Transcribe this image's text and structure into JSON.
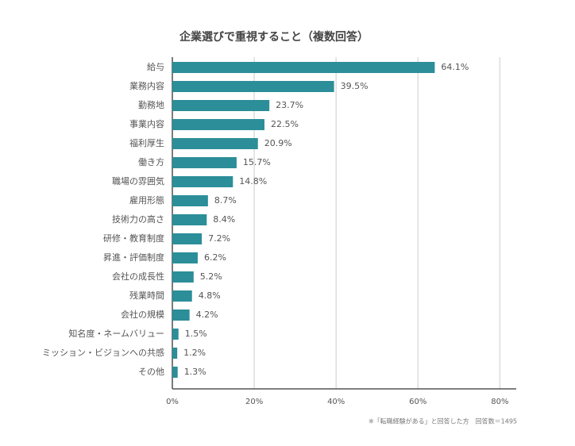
{
  "chart_data": {
    "type": "barh",
    "title": "企業選びで重視すること（複数回答）",
    "note": "※「転職経験がある」と回答した方　回答数＝1495",
    "categories": [
      "給与",
      "業務内容",
      "勤務地",
      "事業内容",
      "福利厚生",
      "働き方",
      "職場の雰囲気",
      "雇用形態",
      "技術力の高さ",
      "研修・教育制度",
      "昇進・評価制度",
      "会社の成長性",
      "残業時間",
      "会社の規模",
      "知名度・ネームバリュー",
      "ミッション・ビジョンへの共感",
      "その他"
    ],
    "values": [
      64.1,
      39.5,
      23.7,
      22.5,
      20.9,
      15.7,
      14.8,
      8.7,
      8.4,
      7.2,
      6.2,
      5.2,
      4.8,
      4.2,
      1.5,
      1.2,
      1.3
    ],
    "value_labels": [
      "64.1%",
      "39.5%",
      "23.7%",
      "22.5%",
      "20.9%",
      "15.7%",
      "14.8%",
      "8.7%",
      "8.4%",
      "7.2%",
      "6.2%",
      "5.2%",
      "4.8%",
      "4.2%",
      "1.5%",
      "1.2%",
      "1.3%"
    ],
    "color": "#2b8e98",
    "xlim": [
      0,
      84
    ],
    "xticks": [
      {
        "value": 0,
        "label": "0%"
      },
      {
        "value": 20,
        "label": "20%"
      },
      {
        "value": 40,
        "label": "40%"
      },
      {
        "value": 60,
        "label": "60%"
      },
      {
        "value": 80,
        "label": "80%"
      }
    ],
    "grid": true
  }
}
